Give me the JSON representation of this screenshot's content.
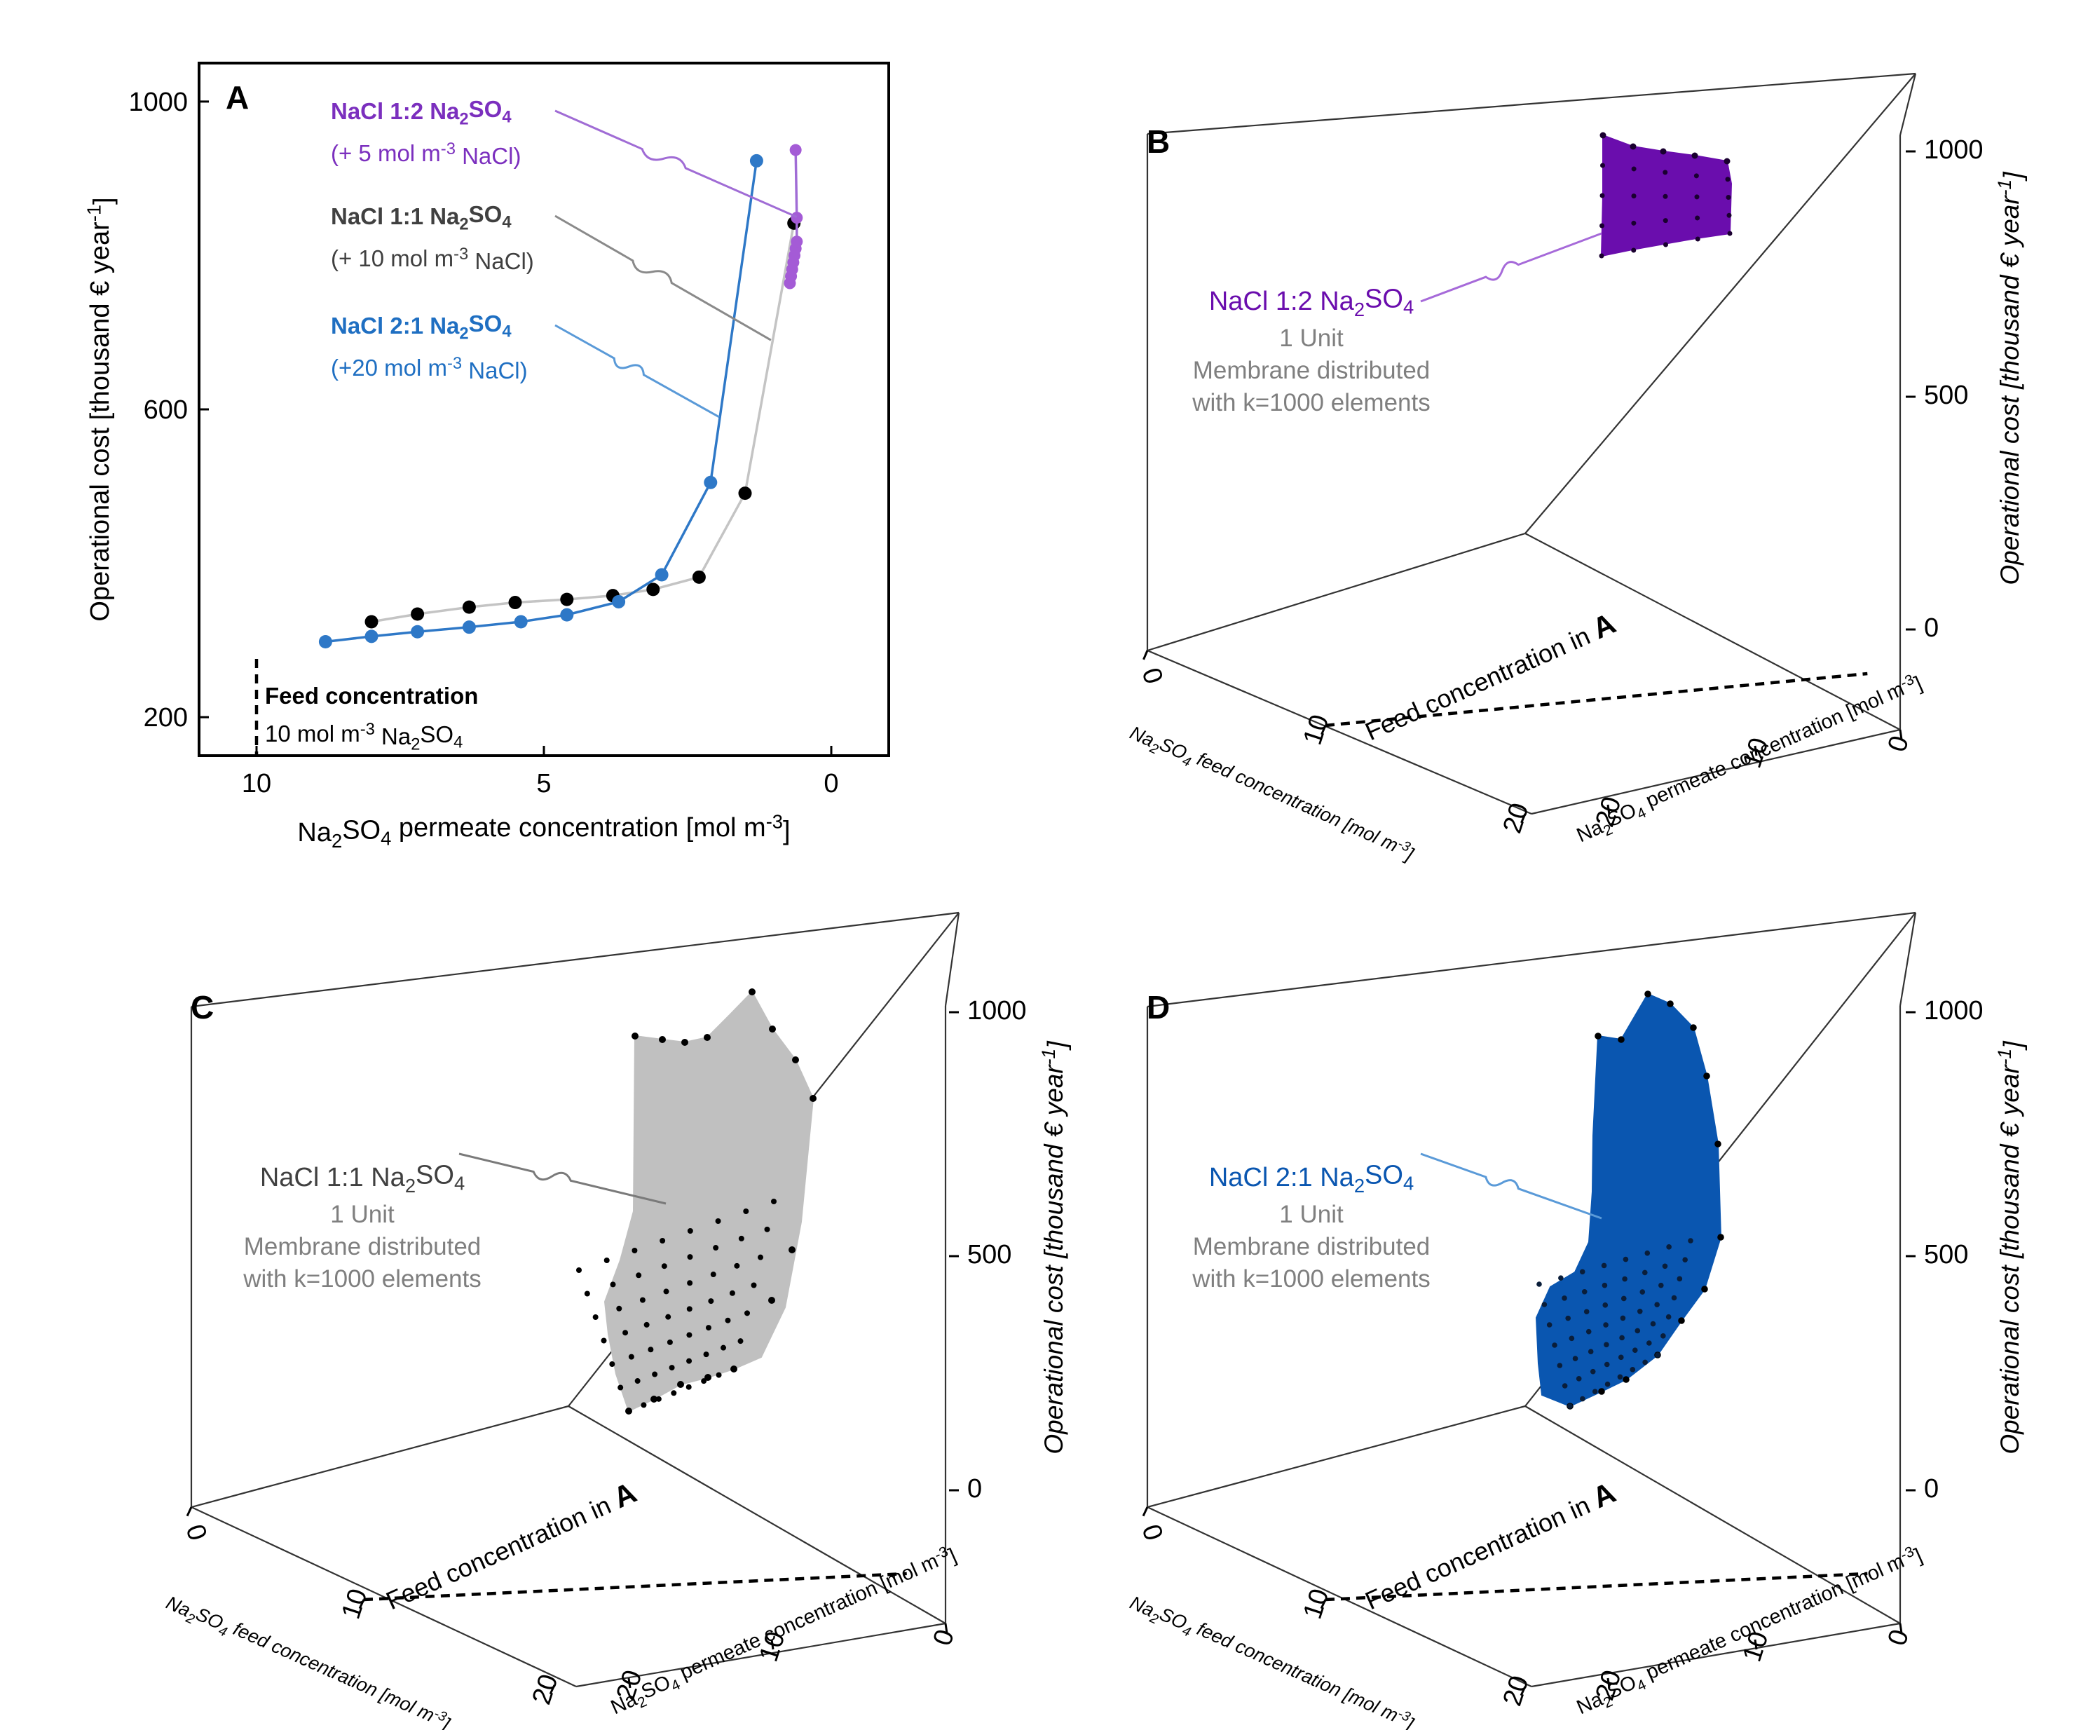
{
  "chart_data": [
    {
      "panel": "A",
      "type": "line",
      "xlabel": "Na₂SO₄ permeate concentration [mol m⁻³]",
      "ylabel": "Operational cost [thousand € year⁻¹]",
      "xlim": [
        11,
        -1
      ],
      "ylim": [
        150,
        1050
      ],
      "xticks": [
        10,
        5,
        0
      ],
      "yticks": [
        200,
        600,
        1000
      ],
      "feed_marker": {
        "x": 10,
        "label_title": "Feed concentration",
        "label_value": "10 mol m⁻³ Na₂SO₄"
      },
      "series": [
        {
          "name": "NaCl 1:2 Na₂SO₄",
          "note": "(+ 5 mol m⁻³ NaCl)",
          "color": "#7b2fbe",
          "points": [
            [
              0.72,
              764
            ],
            [
              0.7,
              773
            ],
            [
              0.68,
              782
            ],
            [
              0.66,
              791
            ],
            [
              0.64,
              800
            ],
            [
              0.62,
              809
            ],
            [
              0.6,
              818
            ],
            [
              0.6,
              849
            ],
            [
              0.62,
              937
            ]
          ]
        },
        {
          "name": "NaCl 1:1 Na₂SO₄",
          "note": "(+ 10 mol m⁻³ NaCl)",
          "color": "#000000",
          "points": [
            [
              8.0,
              324
            ],
            [
              7.2,
              334
            ],
            [
              6.3,
              343
            ],
            [
              5.5,
              349
            ],
            [
              4.6,
              353
            ],
            [
              3.8,
              358
            ],
            [
              3.1,
              366
            ],
            [
              2.3,
              382
            ],
            [
              1.5,
              491
            ],
            [
              0.65,
              842
            ]
          ]
        },
        {
          "name": "NaCl 2:1 Na₂SO₄",
          "note": "(+20 mol m⁻³ NaCl)",
          "color": "#1f6fc2",
          "points": [
            [
              8.8,
              298
            ],
            [
              8.0,
              305
            ],
            [
              7.2,
              311
            ],
            [
              6.3,
              317
            ],
            [
              5.4,
              324
            ],
            [
              4.6,
              333
            ],
            [
              3.7,
              350
            ],
            [
              2.95,
              385
            ],
            [
              2.1,
              505
            ],
            [
              1.3,
              923
            ]
          ]
        }
      ]
    },
    {
      "panel": "B",
      "type": "3d-surface",
      "series_name": "NaCl 1:2 Na₂SO₄",
      "color": "#6a0dad",
      "xlabel": "Na₂SO₄ feed concentration [mol m⁻³]",
      "ylabel": "Na₂SO₄ permeate concentration [mol m⁻³]",
      "zlabel": "Operational cost [thousand € year⁻¹]",
      "xticks": [
        0,
        10,
        20
      ],
      "yticks": [
        0,
        10,
        20
      ],
      "zticks": [
        0,
        500,
        1000
      ],
      "note_unit": "1 Unit",
      "note_line1": "Membrane distributed",
      "note_line2": "with k=1000 elements",
      "feed_label": "Feed concentration in",
      "feed_ref": "A"
    },
    {
      "panel": "C",
      "type": "3d-surface",
      "series_name": "NaCl 1:1 Na₂SO₄",
      "color": "#c0c0c0",
      "xlabel": "Na₂SO₄ feed concentration [mol m⁻³]",
      "ylabel": "Na₂SO₄ permeate concentration [mol m⁻³]",
      "zlabel": "Operational cost [thousand € year⁻¹]",
      "xticks": [
        0,
        10,
        20
      ],
      "yticks": [
        0,
        10,
        20
      ],
      "zticks": [
        0,
        500,
        1000
      ],
      "note_unit": "1 Unit",
      "note_line1": "Membrane distributed",
      "note_line2": "with k=1000 elements",
      "feed_label": "Feed concentration in",
      "feed_ref": "A"
    },
    {
      "panel": "D",
      "type": "3d-surface",
      "series_name": "NaCl 2:1 Na₂SO₄",
      "color": "#0a56b0",
      "xlabel": "Na₂SO₄ feed concentration [mol m⁻³]",
      "ylabel": "Na₂SO₄ permeate concentration [mol m⁻³]",
      "zlabel": "Operational cost [thousand € year⁻¹]",
      "xticks": [
        0,
        10,
        20
      ],
      "yticks": [
        0,
        10,
        20
      ],
      "zticks": [
        0,
        500,
        1000
      ],
      "note_unit": "1 Unit",
      "note_line1": "Membrane distributed",
      "note_line2": "with k=1000 elements",
      "feed_label": "Feed concentration in",
      "feed_ref": "A"
    }
  ]
}
